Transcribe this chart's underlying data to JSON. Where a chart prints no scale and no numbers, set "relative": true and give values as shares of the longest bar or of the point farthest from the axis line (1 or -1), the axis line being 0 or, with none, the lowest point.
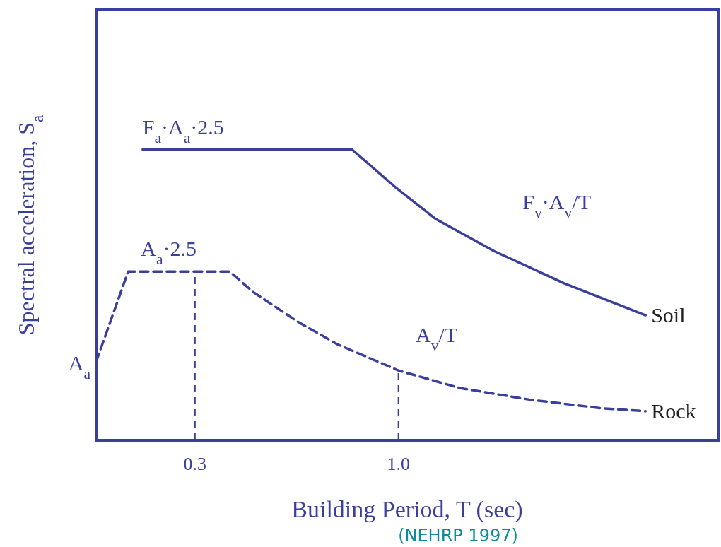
{
  "chart_data": {
    "type": "line",
    "relative": true,
    "xlabel": "Building Period, T (sec)",
    "ylabel": "Spectral acceleration, S$_{a}$",
    "xlim": [
      -0.04,
      2.1
    ],
    "xticks": [
      0.3,
      {
        "value": 1,
        "label": "1.0"
      }
    ],
    "grid": false,
    "legend": false,
    "marker": "none",
    "series": [
      {
        "name": "Soil",
        "color": "#3b3f9c",
        "line_style": "solid",
        "x": [
          0.12,
          0.84,
          0.99,
          1.13,
          1.33,
          1.57,
          1.85
        ],
        "values": [
          1,
          1,
          0.87,
          0.76,
          0.65,
          0.54,
          0.43
        ]
      },
      {
        "name": "Rock",
        "color": "#3b3f9c",
        "line_style": "dashed",
        "x": [
          -0.04,
          0.07,
          0.42,
          0.5,
          0.65,
          0.79,
          1,
          1.21,
          1.45,
          1.7,
          1.85
        ],
        "values": [
          0.27,
          0.58,
          0.58,
          0.51,
          0.41,
          0.33,
          0.24,
          0.18,
          0.14,
          0.11,
          0.1
        ]
      }
    ],
    "ref_lines": [
      {
        "axis": "x",
        "value": 0.3,
        "color": "#3b3f9c",
        "line_style": "dashed"
      },
      {
        "axis": "x",
        "value": 1,
        "color": "#3b3f9c",
        "line_style": "dashed"
      }
    ],
    "annotations": [
      {
        "text": "F$_{a}$·A$_{a}$·2.5",
        "x": 0.12,
        "y": 1
      },
      {
        "text": "A$_{a}$·2.5",
        "x": 0.07,
        "y": 0.58
      },
      {
        "text": "F$_{v}$·A$_{v}$/T",
        "x": 1.33,
        "y": 0.65
      },
      {
        "text": "A$_{v}$/T",
        "x": 1.03,
        "y": 0.24
      },
      {
        "text": "A$_{a}$",
        "x": -0.04,
        "y": 0.27
      },
      "(NEHRP 1997)"
    ]
  }
}
